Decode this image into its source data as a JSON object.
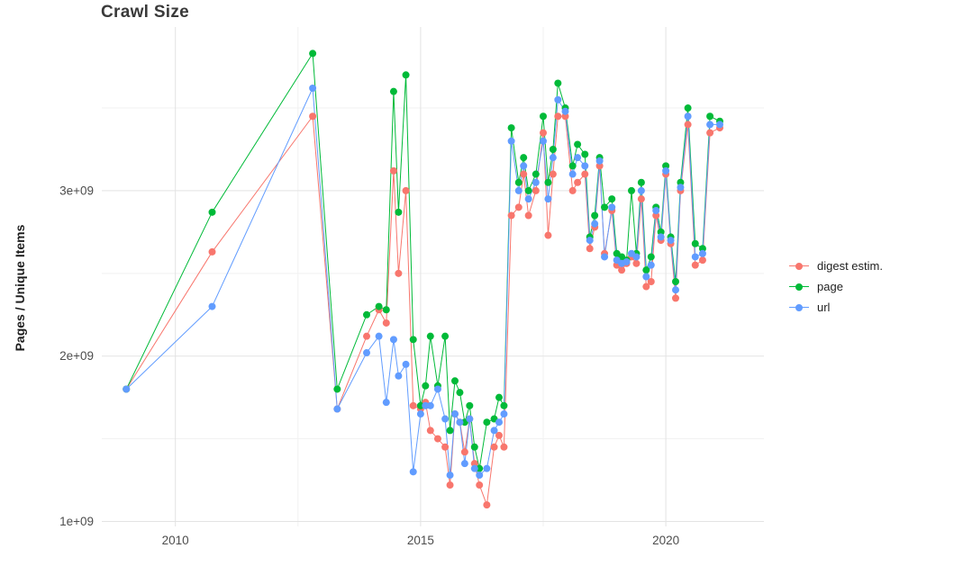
{
  "title": "Crawl Size",
  "axes": {
    "ylabel": "Pages / Unique Items",
    "xlabel": ""
  },
  "chart_data": {
    "type": "line",
    "title": "Crawl Size",
    "xlabel": "",
    "ylabel": "Pages / Unique Items",
    "y_unit": "1e9 (values in billions)",
    "xlim": [
      2008.5,
      2022.0
    ],
    "ylim": [
      0.97,
      3.99
    ],
    "x_ticks": [
      {
        "value": 2010,
        "label": "2010"
      },
      {
        "value": 2015,
        "label": "2015"
      },
      {
        "value": 2020,
        "label": "2020"
      }
    ],
    "y_ticks": [
      {
        "value": 1.0,
        "label": "1e+09"
      },
      {
        "value": 2.0,
        "label": "2e+09"
      },
      {
        "value": 3.0,
        "label": "3e+09"
      }
    ],
    "x_minor_ticks": [
      2012.5,
      2017.5
    ],
    "y_minor_ticks": [
      1.5,
      2.5,
      3.5
    ],
    "grid": true,
    "legend_position": "right",
    "x": [
      2009.0,
      2010.75,
      2012.8,
      2013.3,
      2013.9,
      2014.15,
      2014.3,
      2014.45,
      2014.55,
      2014.7,
      2014.85,
      2015.0,
      2015.1,
      2015.2,
      2015.35,
      2015.5,
      2015.6,
      2015.7,
      2015.8,
      2015.9,
      2016.0,
      2016.1,
      2016.2,
      2016.35,
      2016.5,
      2016.6,
      2016.7,
      2016.85,
      2017.0,
      2017.1,
      2017.2,
      2017.35,
      2017.5,
      2017.6,
      2017.7,
      2017.8,
      2017.95,
      2018.1,
      2018.2,
      2018.35,
      2018.45,
      2018.55,
      2018.65,
      2018.75,
      2018.9,
      2019.0,
      2019.1,
      2019.2,
      2019.3,
      2019.4,
      2019.5,
      2019.6,
      2019.7,
      2019.8,
      2019.9,
      2020.0,
      2020.1,
      2020.2,
      2020.3,
      2020.45,
      2020.6,
      2020.75,
      2020.9,
      2021.1
    ],
    "series": [
      {
        "name": "digest estim.",
        "color": "#F8766D",
        "values": [
          1.8,
          2.63,
          3.45,
          1.68,
          2.12,
          2.28,
          2.2,
          3.12,
          2.5,
          3.0,
          1.7,
          1.68,
          1.72,
          1.55,
          1.5,
          1.45,
          1.22,
          1.65,
          1.6,
          1.42,
          1.62,
          1.35,
          1.22,
          1.1,
          1.45,
          1.52,
          1.45,
          2.85,
          2.9,
          3.1,
          2.85,
          3.0,
          3.35,
          2.73,
          3.1,
          3.45,
          3.45,
          3.0,
          3.05,
          3.1,
          2.65,
          2.78,
          3.15,
          2.62,
          2.88,
          2.55,
          2.52,
          2.56,
          2.6,
          2.56,
          2.95,
          2.42,
          2.45,
          2.85,
          2.7,
          3.1,
          2.68,
          2.35,
          3.0,
          3.4,
          2.55,
          2.58,
          3.35,
          3.38
        ]
      },
      {
        "name": "page",
        "color": "#00BA38",
        "values": [
          1.8,
          2.87,
          3.83,
          1.8,
          2.25,
          2.3,
          2.28,
          3.6,
          2.87,
          3.7,
          2.1,
          1.7,
          1.82,
          2.12,
          1.82,
          2.12,
          1.55,
          1.85,
          1.78,
          1.6,
          1.7,
          1.45,
          1.32,
          1.6,
          1.62,
          1.75,
          1.7,
          3.38,
          3.05,
          3.2,
          3.0,
          3.1,
          3.45,
          3.05,
          3.25,
          3.65,
          3.5,
          3.15,
          3.28,
          3.22,
          2.72,
          2.85,
          3.2,
          2.9,
          2.95,
          2.62,
          2.6,
          2.58,
          3.0,
          2.62,
          3.05,
          2.52,
          2.6,
          2.9,
          2.75,
          3.15,
          2.72,
          2.45,
          3.05,
          3.5,
          2.68,
          2.65,
          3.45,
          3.42
        ]
      },
      {
        "name": "url",
        "color": "#619CFF",
        "values": [
          1.8,
          2.3,
          3.62,
          1.68,
          2.02,
          2.12,
          1.72,
          2.1,
          1.88,
          1.95,
          1.3,
          1.65,
          1.7,
          1.7,
          1.8,
          1.62,
          1.28,
          1.65,
          1.6,
          1.35,
          1.62,
          1.32,
          1.28,
          1.32,
          1.55,
          1.6,
          1.65,
          3.3,
          3.0,
          3.15,
          2.95,
          3.05,
          3.3,
          2.95,
          3.2,
          3.55,
          3.48,
          3.1,
          3.2,
          3.15,
          2.7,
          2.8,
          3.18,
          2.6,
          2.9,
          2.58,
          2.56,
          2.57,
          2.62,
          2.6,
          3.0,
          2.48,
          2.55,
          2.88,
          2.72,
          3.12,
          2.7,
          2.4,
          3.02,
          3.45,
          2.6,
          2.62,
          3.4,
          3.4
        ]
      }
    ],
    "style": {
      "grid_major_color": "#e3e3e3",
      "grid_minor_color": "#f1f1f1",
      "tick_label_color": "#4d4d4d",
      "point_radius": 4,
      "line_width": 1
    }
  }
}
